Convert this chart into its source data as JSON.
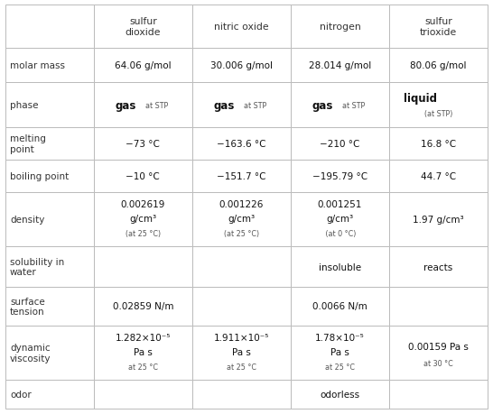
{
  "col_headers": [
    "",
    "sulfur\ndioxide",
    "nitric oxide",
    "nitrogen",
    "sulfur\ntrioxide"
  ],
  "row_labels": [
    "molar mass",
    "phase",
    "melting\npoint",
    "boiling point",
    "density",
    "solubility in\nwater",
    "surface\ntension",
    "dynamic\nviscosity",
    "odor"
  ],
  "cells": [
    [
      "64.06 g/mol",
      "30.006 g/mol",
      "28.014 g/mol",
      "80.06 g/mol"
    ],
    [
      {
        "bold": "gas",
        "small": "at STP",
        "layout": "inline"
      },
      {
        "bold": "gas",
        "small": "at STP",
        "layout": "inline"
      },
      {
        "bold": "gas",
        "small": "at STP",
        "layout": "inline"
      },
      {
        "bold": "liquid",
        "small": "(at STP)",
        "layout": "stacked"
      }
    ],
    [
      "−73 °C",
      "−163.6 °C",
      "−210 °C",
      "16.8 °C"
    ],
    [
      "−10 °C",
      "−151.7 °C",
      "−195.79 °C",
      "44.7 °C"
    ],
    [
      {
        "line1": "0.002619",
        "line2": "g/cm³",
        "small": "(at 25 °C)"
      },
      {
        "line1": "0.001226",
        "line2": "g/cm³",
        "small": "(at 25 °C)"
      },
      {
        "line1": "0.001251",
        "line2": "g/cm³",
        "small": " (at 0 °C)"
      },
      {
        "line1": "1.97 g/cm³",
        "line2": "",
        "small": ""
      }
    ],
    [
      "",
      "",
      "insoluble",
      "reacts"
    ],
    [
      "0.02859 N/m",
      "",
      "0.0066 N/m",
      ""
    ],
    [
      {
        "line1": "1.282×10⁻⁵",
        "line2": "Pa s",
        "small": "at 25 °C"
      },
      {
        "line1": "1.911×10⁻⁵",
        "line2": "Pa s",
        "small": "at 25 °C"
      },
      {
        "line1": "1.78×10⁻⁵",
        "line2": "Pa s",
        "small": "at 25 °C"
      },
      {
        "line1": "0.00159 Pa s",
        "line2": "",
        "small": "at 30 °C"
      }
    ],
    [
      "",
      "",
      "odorless",
      ""
    ]
  ],
  "bg_color": "#ffffff",
  "border_color": "#bbbbbb",
  "header_color": "#333333",
  "label_color": "#333333",
  "cell_color": "#111111",
  "small_color": "#555555"
}
